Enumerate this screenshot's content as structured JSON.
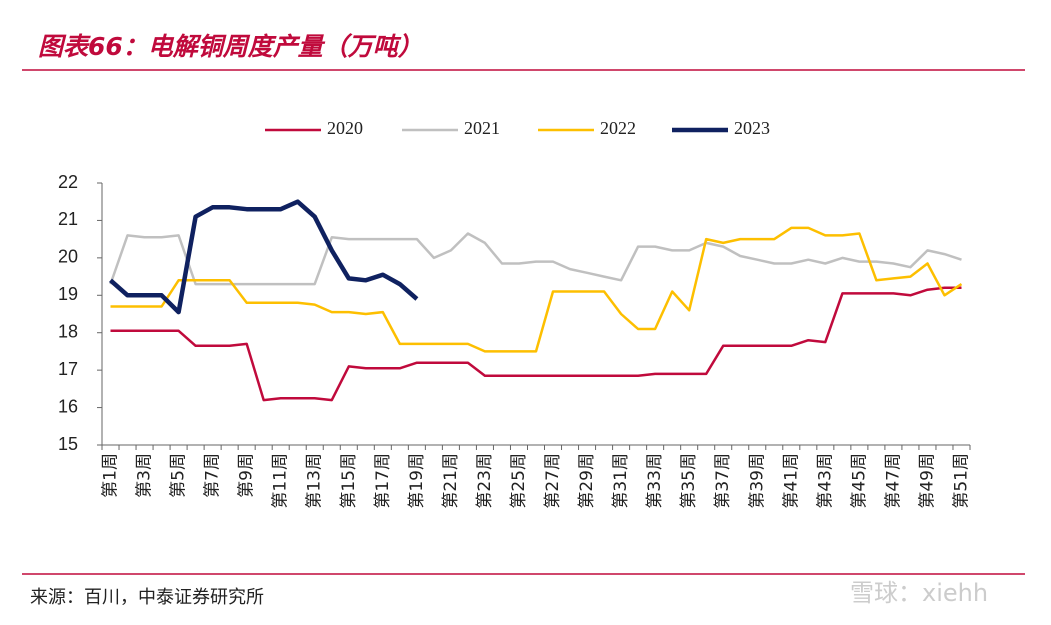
{
  "chart_data": {
    "type": "line",
    "title": "图表66：电解铜周度产量（万吨）",
    "source": "来源：百川，中泰证券研究所",
    "watermark": "雪球：xiehh",
    "categories": [
      "第1周",
      null,
      "第3周",
      null,
      "第5周",
      null,
      "第7周",
      null,
      "第9周",
      null,
      "第11周",
      null,
      "第13周",
      null,
      "第15周",
      null,
      "第17周",
      null,
      "第19周",
      null,
      "第21周",
      null,
      "第23周",
      null,
      "第25周",
      null,
      "第27周",
      null,
      "第29周",
      null,
      "第31周",
      null,
      "第33周",
      null,
      "第35周",
      null,
      "第37周",
      null,
      "第39周",
      null,
      "第41周",
      null,
      "第43周",
      null,
      "第45周",
      null,
      "第47周",
      null,
      "第49周",
      null,
      "第51周"
    ],
    "series": [
      {
        "name": "2020",
        "color": "#c00a3c",
        "width": 2.5,
        "values": [
          18.05,
          18.05,
          18.05,
          18.05,
          18.05,
          17.65,
          17.65,
          17.65,
          17.7,
          16.2,
          16.25,
          16.25,
          16.25,
          16.2,
          17.1,
          17.05,
          17.05,
          17.05,
          17.2,
          17.2,
          17.2,
          17.2,
          16.85,
          16.85,
          16.85,
          16.85,
          16.85,
          16.85,
          16.85,
          16.85,
          16.85,
          16.85,
          16.9,
          16.9,
          16.9,
          16.9,
          17.65,
          17.65,
          17.65,
          17.65,
          17.65,
          17.8,
          17.75,
          19.05,
          19.05,
          19.05,
          19.05,
          19.0,
          19.15,
          19.2,
          19.2
        ]
      },
      {
        "name": "2021",
        "color": "#c0c0c0",
        "width": 2.5,
        "values": [
          19.3,
          20.6,
          20.55,
          20.55,
          20.6,
          19.3,
          19.3,
          19.3,
          19.3,
          19.3,
          19.3,
          19.3,
          19.3,
          20.55,
          20.5,
          20.5,
          20.5,
          20.5,
          20.5,
          20.0,
          20.2,
          20.65,
          20.4,
          19.85,
          19.85,
          19.9,
          19.9,
          19.7,
          19.6,
          19.5,
          19.4,
          20.3,
          20.3,
          20.2,
          20.2,
          20.4,
          20.3,
          20.05,
          19.95,
          19.85,
          19.85,
          19.95,
          19.85,
          20.0,
          19.9,
          19.9,
          19.85,
          19.75,
          20.2,
          20.1,
          19.95
        ]
      },
      {
        "name": "2022",
        "color": "#fdbf00",
        "width": 2.5,
        "values": [
          18.7,
          18.7,
          18.7,
          18.7,
          19.4,
          19.4,
          19.4,
          19.4,
          18.8,
          18.8,
          18.8,
          18.8,
          18.75,
          18.55,
          18.55,
          18.5,
          18.55,
          17.7,
          17.7,
          17.7,
          17.7,
          17.7,
          17.5,
          17.5,
          17.5,
          17.5,
          19.1,
          19.1,
          19.1,
          19.1,
          18.5,
          18.1,
          18.1,
          19.1,
          18.6,
          20.5,
          20.4,
          20.5,
          20.5,
          20.5,
          20.8,
          20.8,
          20.6,
          20.6,
          20.65,
          19.4,
          19.45,
          19.5,
          19.85,
          19.0,
          19.3
        ]
      },
      {
        "name": "2023",
        "color": "#0f2160",
        "width": 4.5,
        "values": [
          19.4,
          19.0,
          19.0,
          19.0,
          18.55,
          21.1,
          21.35,
          21.35,
          21.3,
          21.3,
          21.3,
          21.5,
          21.1,
          20.2,
          19.45,
          19.4,
          19.55,
          19.3,
          18.9,
          null,
          null,
          null,
          null,
          null,
          null,
          null,
          null,
          null,
          null,
          null,
          null,
          null,
          null,
          null,
          null,
          null,
          null,
          null,
          null,
          null,
          null,
          null,
          null,
          null,
          null,
          null,
          null,
          null,
          null,
          null,
          null
        ]
      }
    ],
    "ylim": [
      15,
      22
    ],
    "yticks": [
      15,
      16,
      17,
      18,
      19,
      20,
      21,
      22
    ],
    "legend": "top"
  }
}
